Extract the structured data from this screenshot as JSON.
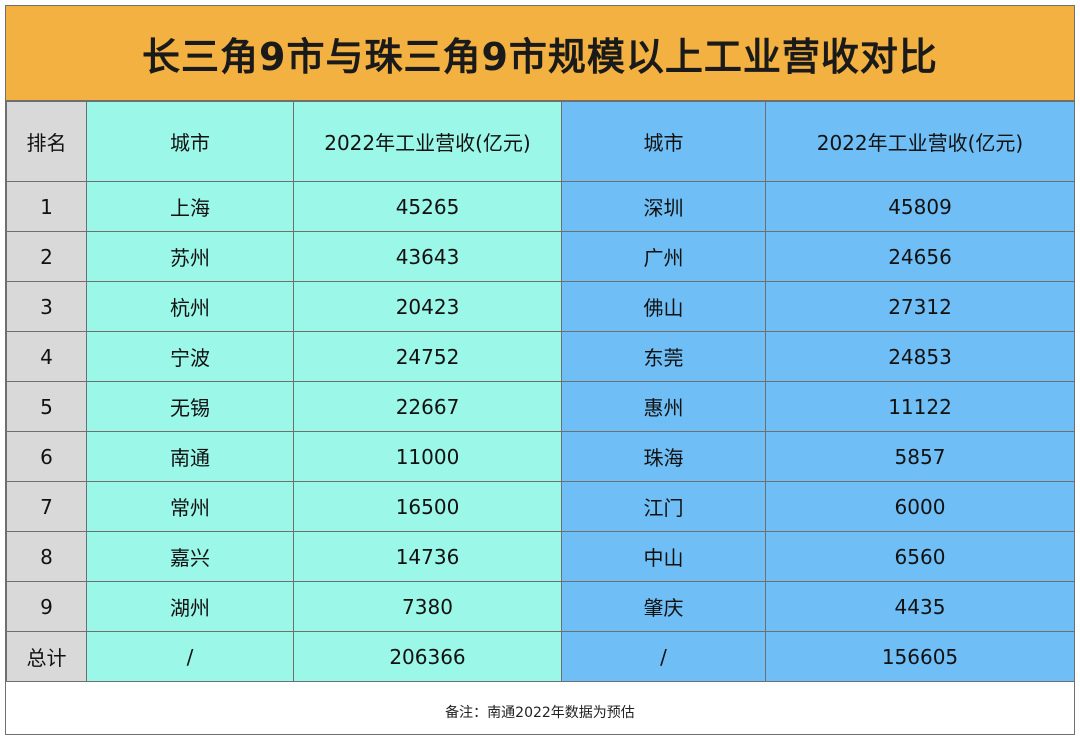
{
  "title": "长三角9市与珠三角9市规模以上工业营收对比",
  "headers": {
    "rank": "排名",
    "yrd_city": "城市",
    "yrd_revenue": "2022年工业营收(亿元)",
    "prd_city": "城市",
    "prd_revenue": "2022年工业营收(亿元)"
  },
  "rows": [
    {
      "rank": "1",
      "yrd_city": "上海",
      "yrd_revenue": "45265",
      "prd_city": "深圳",
      "prd_revenue": "45809"
    },
    {
      "rank": "2",
      "yrd_city": "苏州",
      "yrd_revenue": "43643",
      "prd_city": "广州",
      "prd_revenue": "24656"
    },
    {
      "rank": "3",
      "yrd_city": "杭州",
      "yrd_revenue": "20423",
      "prd_city": "佛山",
      "prd_revenue": "27312"
    },
    {
      "rank": "4",
      "yrd_city": "宁波",
      "yrd_revenue": "24752",
      "prd_city": "东莞",
      "prd_revenue": "24853"
    },
    {
      "rank": "5",
      "yrd_city": "无锡",
      "yrd_revenue": "22667",
      "prd_city": "惠州",
      "prd_revenue": "11122"
    },
    {
      "rank": "6",
      "yrd_city": "南通",
      "yrd_revenue": "11000",
      "prd_city": "珠海",
      "prd_revenue": "5857"
    },
    {
      "rank": "7",
      "yrd_city": "常州",
      "yrd_revenue": "16500",
      "prd_city": "江门",
      "prd_revenue": "6000"
    },
    {
      "rank": "8",
      "yrd_city": "嘉兴",
      "yrd_revenue": "14736",
      "prd_city": "中山",
      "prd_revenue": "6560"
    },
    {
      "rank": "9",
      "yrd_city": "湖州",
      "yrd_revenue": "7380",
      "prd_city": "肇庆",
      "prd_revenue": "4435"
    },
    {
      "rank": "总计",
      "yrd_city": "/",
      "yrd_revenue": "206366",
      "prd_city": "/",
      "prd_revenue": "156605"
    }
  ],
  "note": "备注：南通2022年数据为预估",
  "colors": {
    "title_bg": "#f2b141",
    "rank_column": "#d9d9d9",
    "yrd_columns": "#9bf7e7",
    "prd_columns": "#6fbff6"
  }
}
